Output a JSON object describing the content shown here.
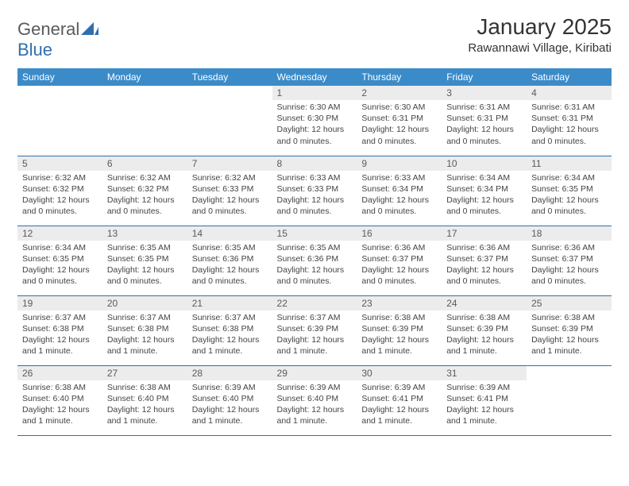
{
  "logo": {
    "word1": "General",
    "word2": "Blue"
  },
  "title": "January 2025",
  "location": "Rawannawi Village, Kiribati",
  "colors": {
    "header_bg": "#3b8bc9",
    "header_text": "#ffffff",
    "daynum_bg": "#ececec",
    "rule": "#2f6fb0",
    "logo_blue": "#2f6fb0",
    "body_text": "#444444"
  },
  "weekdays": [
    "Sunday",
    "Monday",
    "Tuesday",
    "Wednesday",
    "Thursday",
    "Friday",
    "Saturday"
  ],
  "first_day_index": 3,
  "days": [
    {
      "n": 1,
      "sunrise": "6:30 AM",
      "sunset": "6:30 PM",
      "daylight": "12 hours and 0 minutes."
    },
    {
      "n": 2,
      "sunrise": "6:30 AM",
      "sunset": "6:31 PM",
      "daylight": "12 hours and 0 minutes."
    },
    {
      "n": 3,
      "sunrise": "6:31 AM",
      "sunset": "6:31 PM",
      "daylight": "12 hours and 0 minutes."
    },
    {
      "n": 4,
      "sunrise": "6:31 AM",
      "sunset": "6:31 PM",
      "daylight": "12 hours and 0 minutes."
    },
    {
      "n": 5,
      "sunrise": "6:32 AM",
      "sunset": "6:32 PM",
      "daylight": "12 hours and 0 minutes."
    },
    {
      "n": 6,
      "sunrise": "6:32 AM",
      "sunset": "6:32 PM",
      "daylight": "12 hours and 0 minutes."
    },
    {
      "n": 7,
      "sunrise": "6:32 AM",
      "sunset": "6:33 PM",
      "daylight": "12 hours and 0 minutes."
    },
    {
      "n": 8,
      "sunrise": "6:33 AM",
      "sunset": "6:33 PM",
      "daylight": "12 hours and 0 minutes."
    },
    {
      "n": 9,
      "sunrise": "6:33 AM",
      "sunset": "6:34 PM",
      "daylight": "12 hours and 0 minutes."
    },
    {
      "n": 10,
      "sunrise": "6:34 AM",
      "sunset": "6:34 PM",
      "daylight": "12 hours and 0 minutes."
    },
    {
      "n": 11,
      "sunrise": "6:34 AM",
      "sunset": "6:35 PM",
      "daylight": "12 hours and 0 minutes."
    },
    {
      "n": 12,
      "sunrise": "6:34 AM",
      "sunset": "6:35 PM",
      "daylight": "12 hours and 0 minutes."
    },
    {
      "n": 13,
      "sunrise": "6:35 AM",
      "sunset": "6:35 PM",
      "daylight": "12 hours and 0 minutes."
    },
    {
      "n": 14,
      "sunrise": "6:35 AM",
      "sunset": "6:36 PM",
      "daylight": "12 hours and 0 minutes."
    },
    {
      "n": 15,
      "sunrise": "6:35 AM",
      "sunset": "6:36 PM",
      "daylight": "12 hours and 0 minutes."
    },
    {
      "n": 16,
      "sunrise": "6:36 AM",
      "sunset": "6:37 PM",
      "daylight": "12 hours and 0 minutes."
    },
    {
      "n": 17,
      "sunrise": "6:36 AM",
      "sunset": "6:37 PM",
      "daylight": "12 hours and 0 minutes."
    },
    {
      "n": 18,
      "sunrise": "6:36 AM",
      "sunset": "6:37 PM",
      "daylight": "12 hours and 0 minutes."
    },
    {
      "n": 19,
      "sunrise": "6:37 AM",
      "sunset": "6:38 PM",
      "daylight": "12 hours and 1 minute."
    },
    {
      "n": 20,
      "sunrise": "6:37 AM",
      "sunset": "6:38 PM",
      "daylight": "12 hours and 1 minute."
    },
    {
      "n": 21,
      "sunrise": "6:37 AM",
      "sunset": "6:38 PM",
      "daylight": "12 hours and 1 minute."
    },
    {
      "n": 22,
      "sunrise": "6:37 AM",
      "sunset": "6:39 PM",
      "daylight": "12 hours and 1 minute."
    },
    {
      "n": 23,
      "sunrise": "6:38 AM",
      "sunset": "6:39 PM",
      "daylight": "12 hours and 1 minute."
    },
    {
      "n": 24,
      "sunrise": "6:38 AM",
      "sunset": "6:39 PM",
      "daylight": "12 hours and 1 minute."
    },
    {
      "n": 25,
      "sunrise": "6:38 AM",
      "sunset": "6:39 PM",
      "daylight": "12 hours and 1 minute."
    },
    {
      "n": 26,
      "sunrise": "6:38 AM",
      "sunset": "6:40 PM",
      "daylight": "12 hours and 1 minute."
    },
    {
      "n": 27,
      "sunrise": "6:38 AM",
      "sunset": "6:40 PM",
      "daylight": "12 hours and 1 minute."
    },
    {
      "n": 28,
      "sunrise": "6:39 AM",
      "sunset": "6:40 PM",
      "daylight": "12 hours and 1 minute."
    },
    {
      "n": 29,
      "sunrise": "6:39 AM",
      "sunset": "6:40 PM",
      "daylight": "12 hours and 1 minute."
    },
    {
      "n": 30,
      "sunrise": "6:39 AM",
      "sunset": "6:41 PM",
      "daylight": "12 hours and 1 minute."
    },
    {
      "n": 31,
      "sunrise": "6:39 AM",
      "sunset": "6:41 PM",
      "daylight": "12 hours and 1 minute."
    }
  ],
  "labels": {
    "sunrise_prefix": "Sunrise: ",
    "sunset_prefix": "Sunset: ",
    "daylight_prefix": "Daylight: "
  }
}
